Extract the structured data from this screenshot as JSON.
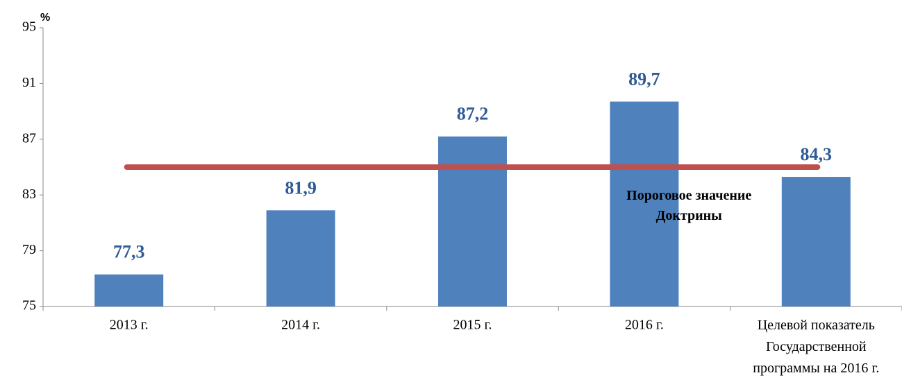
{
  "chart_data": {
    "type": "bar",
    "ylabel": "%",
    "categories": [
      "2013 г.",
      "2014 г.",
      "2015 г.",
      "2016 г.",
      "Целевой показатель\nГосударственной\nпрограммы на 2016 г."
    ],
    "values": [
      77.3,
      81.9,
      87.2,
      89.7,
      84.3
    ],
    "value_labels": [
      "77,3",
      "81,9",
      "87,2",
      "89,7",
      "84,3"
    ],
    "color": "#4f81bd",
    "label_color": "#2e5a95",
    "ylim": [
      75,
      95
    ],
    "yticks": [
      75,
      79,
      83,
      87,
      91,
      95
    ],
    "threshold": {
      "value": 85,
      "label": "Пороговое значение\nДоктрины",
      "color": "#c0504d"
    }
  }
}
